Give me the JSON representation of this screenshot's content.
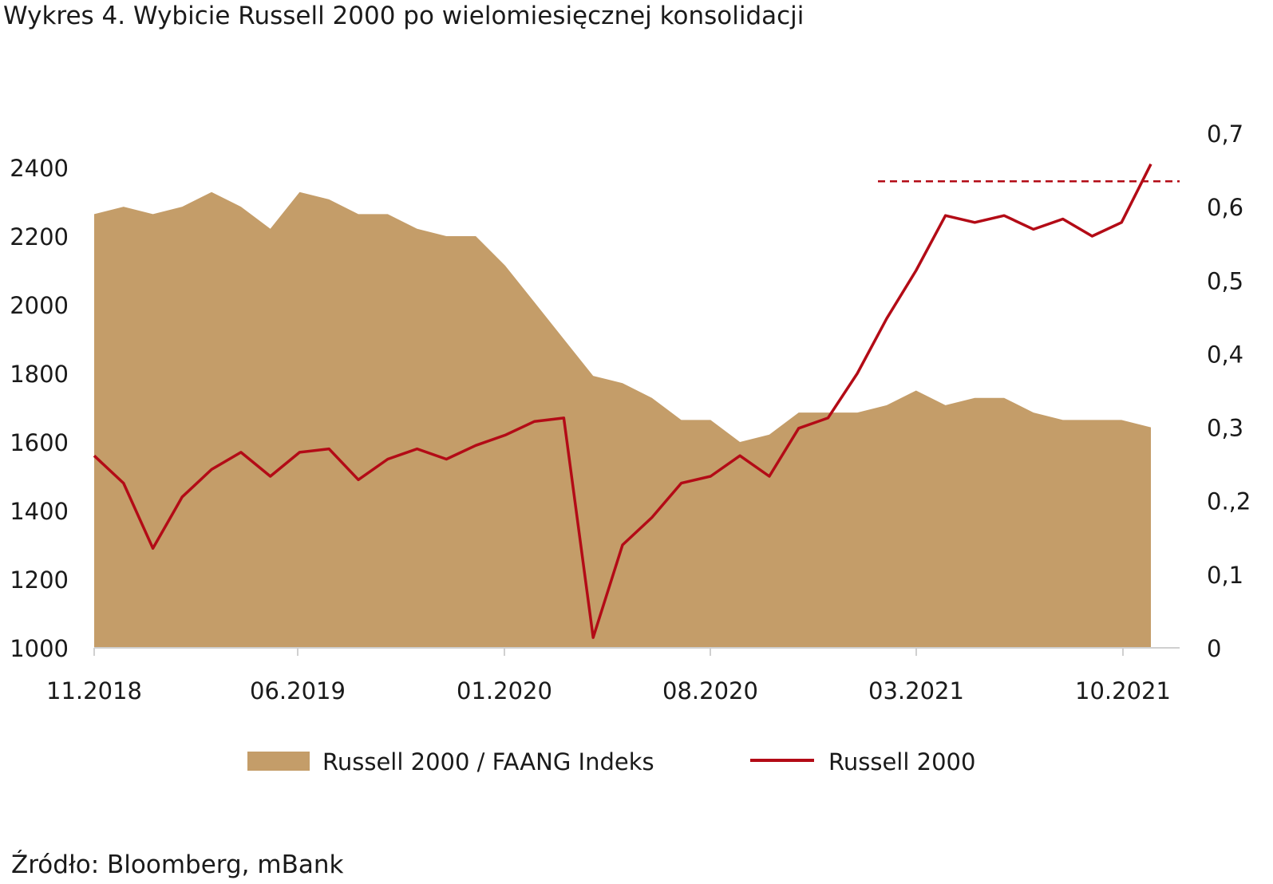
{
  "title": "Wykres 4. Wybicie Russell 2000 po wielomiesięcznej konsolidacji",
  "source": "Źródło: Bloomberg, mBank",
  "chart_data": {
    "type": "area",
    "title": "Wykres 4. Wybicie Russell 2000 po wielomiesięcznej konsolidacji",
    "x_tick_labels": [
      "11.2018",
      "06.2019",
      "01.2020",
      "08.2020",
      "03.2021",
      "10.2021"
    ],
    "x": [
      "2018-11",
      "2018-12",
      "2019-01",
      "2019-02",
      "2019-03",
      "2019-04",
      "2019-05",
      "2019-06",
      "2019-07",
      "2019-08",
      "2019-09",
      "2019-10",
      "2019-11",
      "2019-12",
      "2020-01",
      "2020-02",
      "2020-03",
      "2020-04",
      "2020-05",
      "2020-06",
      "2020-07",
      "2020-08",
      "2020-09",
      "2020-10",
      "2020-11",
      "2020-12",
      "2021-01",
      "2021-02",
      "2021-03",
      "2021-04",
      "2021-05",
      "2021-06",
      "2021-07",
      "2021-08",
      "2021-09",
      "2021-10",
      "2021-11"
    ],
    "y_left_ticks": [
      "1000",
      "1200",
      "1400",
      "1600",
      "1800",
      "2000",
      "2200",
      "2400"
    ],
    "y_left_range": [
      1000,
      2400
    ],
    "y_right_ticks": [
      "0",
      "0,1",
      "0.,2",
      "0,3",
      "0,4",
      "0,5",
      "0,6",
      "0,7"
    ],
    "y_right_range": [
      0,
      0.7
    ],
    "series": [
      {
        "name": "Russell 2000 / FAANG Indeks",
        "type": "area",
        "axis": "right",
        "color": "#c49d69",
        "values": [
          0.59,
          0.6,
          0.59,
          0.6,
          0.62,
          0.6,
          0.57,
          0.62,
          0.61,
          0.59,
          0.59,
          0.57,
          0.56,
          0.56,
          0.52,
          0.47,
          0.42,
          0.37,
          0.36,
          0.34,
          0.31,
          0.31,
          0.28,
          0.29,
          0.32,
          0.32,
          0.32,
          0.33,
          0.35,
          0.33,
          0.34,
          0.34,
          0.32,
          0.31,
          0.31,
          0.31,
          0.3
        ]
      },
      {
        "name": "Russell 2000",
        "type": "line",
        "axis": "left",
        "color": "#b30b16",
        "values": [
          1560,
          1480,
          1290,
          1440,
          1520,
          1570,
          1500,
          1570,
          1580,
          1490,
          1550,
          1580,
          1550,
          1590,
          1620,
          1660,
          1670,
          1030,
          1300,
          1380,
          1480,
          1500,
          1560,
          1500,
          1640,
          1670,
          1800,
          1960,
          2100,
          2260,
          2240,
          2260,
          2220,
          2250,
          2200,
          2240,
          2410
        ]
      }
    ],
    "reference_line": {
      "type": "horizontal",
      "axis": "left",
      "value": 2360,
      "style": "dashed",
      "color": "#b30b16"
    },
    "legend": [
      "Russell 2000 / FAANG Indeks",
      "Russell 2000"
    ],
    "legend_position": "bottom",
    "grid": false
  }
}
